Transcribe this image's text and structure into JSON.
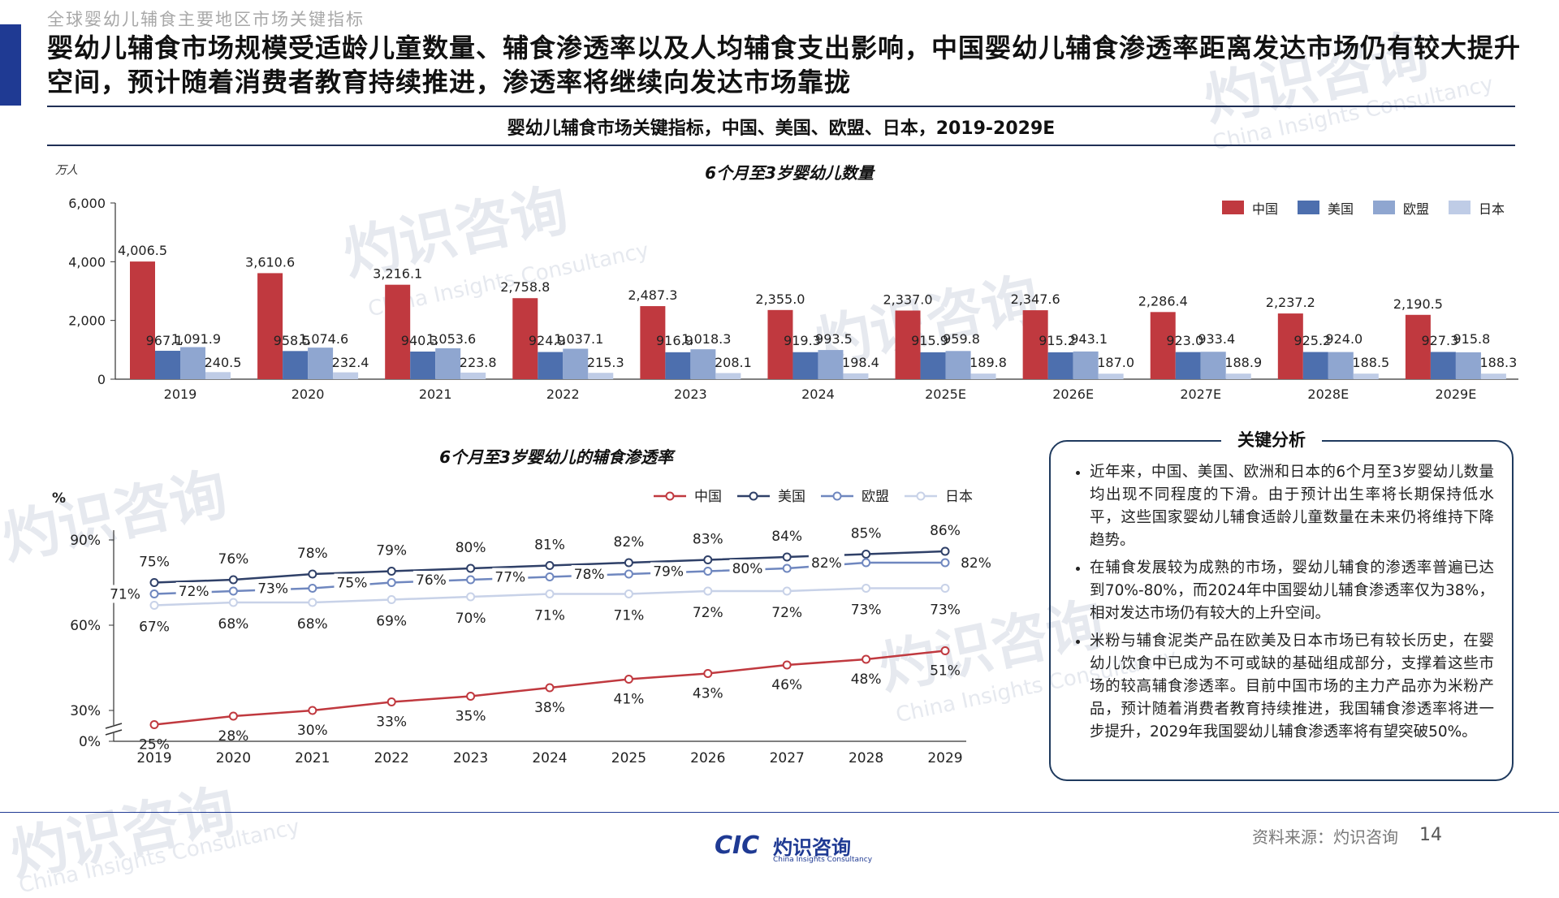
{
  "header": {
    "topline": "全球婴幼儿辅食主要地区市场关键指标",
    "headline": "婴幼儿辅食市场规模受适龄儿童数量、辅食渗透率以及人均辅食支出影响，中国婴幼儿辅食渗透率距离发达市场仍有较大提升空间，预计随着消费者教育持续推进，渗透率将继续向发达市场靠拢",
    "subtitle": "婴幼儿辅食市场关键指标，中国、美国、欧盟、日本，2019-2029E"
  },
  "watermarks": {
    "cn": "灼识咨询",
    "en": "China Insights Consultancy",
    "logo": "CIC"
  },
  "chart_data": [
    {
      "type": "bar",
      "title": "6个月至3岁婴幼儿数量",
      "ylabel": "万人",
      "ylim": [
        0,
        6000
      ],
      "yticks": [
        "0",
        "2,000",
        "4,000",
        "6,000"
      ],
      "legend_position": "top-right",
      "categories": [
        "2019",
        "2020",
        "2021",
        "2022",
        "2023",
        "2024",
        "2025E",
        "2026E",
        "2027E",
        "2028E",
        "2029E"
      ],
      "series": [
        {
          "name": "中国",
          "color": "#c0393f",
          "values": [
            4006.5,
            3610.6,
            3216.1,
            2758.8,
            2487.3,
            2355.0,
            2337.0,
            2347.6,
            2286.4,
            2237.2,
            2190.5
          ],
          "labels": [
            "4,006.5",
            "3,610.6",
            "3,216.1",
            "2,758.8",
            "2,487.3",
            "2,355.0",
            "2,337.0",
            "2,347.6",
            "2,286.4",
            "2,237.2",
            "2,190.5"
          ]
        },
        {
          "name": "美国",
          "color": "#4d6fae",
          "values": [
            967.1,
            958.5,
            940.3,
            924.9,
            916.9,
            919.3,
            915.9,
            915.2,
            923.0,
            925.2,
            927.3
          ],
          "labels": [
            "967.1",
            "958.5",
            "940.3",
            "924.9",
            "916.9",
            "919.3",
            "915.9",
            "915.2",
            "923.0",
            "925.2",
            "927.3"
          ]
        },
        {
          "name": "欧盟",
          "color": "#8fa6d0",
          "values": [
            1091.9,
            1074.6,
            1053.6,
            1037.1,
            1018.3,
            993.5,
            959.8,
            943.1,
            933.4,
            924.0,
            915.8
          ],
          "labels": [
            "1,091.9",
            "1,074.6",
            "1,053.6",
            "1,037.1",
            "1,018.3",
            "993.5",
            "959.8",
            "943.1",
            "933.4",
            "924.0",
            "915.8"
          ]
        },
        {
          "name": "日本",
          "color": "#bfcce6",
          "values": [
            240.5,
            232.4,
            223.8,
            215.3,
            208.1,
            198.4,
            189.8,
            187.0,
            188.9,
            188.5,
            188.3
          ],
          "labels": [
            "240.5",
            "232.4",
            "223.8",
            "215.3",
            "208.1",
            "198.4",
            "189.8",
            "187.0",
            "188.9",
            "188.5",
            "188.3"
          ]
        }
      ]
    },
    {
      "type": "line",
      "title": "6个月至3岁婴幼儿的辅食渗透率",
      "ylabel": "%",
      "yaxis_break": true,
      "yticks": [
        "0%",
        "30%",
        "60%",
        "90%"
      ],
      "legend_position": "top-right",
      "x": [
        "2019",
        "2020",
        "2021",
        "2022",
        "2023",
        "2024",
        "2025",
        "2026",
        "2027",
        "2028",
        "2029"
      ],
      "series": [
        {
          "name": "中国",
          "color": "#c0393f",
          "values": [
            25,
            28,
            30,
            33,
            35,
            38,
            41,
            43,
            46,
            48,
            51
          ]
        },
        {
          "name": "美国",
          "color": "#2f4068",
          "values": [
            75,
            76,
            78,
            79,
            80,
            81,
            82,
            83,
            84,
            85,
            86
          ]
        },
        {
          "name": "欧盟",
          "color": "#6f87bf",
          "values": [
            71,
            72,
            73,
            75,
            76,
            77,
            78,
            79,
            80,
            82,
            82
          ]
        },
        {
          "name": "日本",
          "color": "#c8d2e8",
          "values": [
            67,
            68,
            68,
            69,
            70,
            71,
            71,
            72,
            72,
            73,
            73
          ]
        }
      ]
    }
  ],
  "analysis": {
    "title": "关键分析",
    "bullets": [
      "近年来，中国、美国、欧洲和日本的6个月至3岁婴幼儿数量均出现不同程度的下滑。由于预计出生率将长期保持低水平，这些国家婴幼儿辅食适龄儿童数量在未来仍将维持下降趋势。",
      "在辅食发展较为成熟的市场，婴幼儿辅食的渗透率普遍已达到70%-80%，而2024年中国婴幼儿辅食渗透率仅为38%，相对发达市场仍有较大的上升空间。",
      "米粉与辅食泥类产品在欧美及日本市场已有较长历史，在婴幼儿饮食中已成为不可或缺的基础组成部分，支撑着这些市场的较高辅食渗透率。目前中国市场的主力产品亦为米粉产品，预计随着消费者教育持续推进，我国辅食渗透率将进一步提升，2029年我国婴幼儿辅食渗透率将有望突破50%。"
    ]
  },
  "footer": {
    "logo_cic": "CIC",
    "logo_cn": "灼识咨询",
    "logo_en": "China Insights Consultancy",
    "source": "资料来源：灼识咨询",
    "page": "14"
  }
}
